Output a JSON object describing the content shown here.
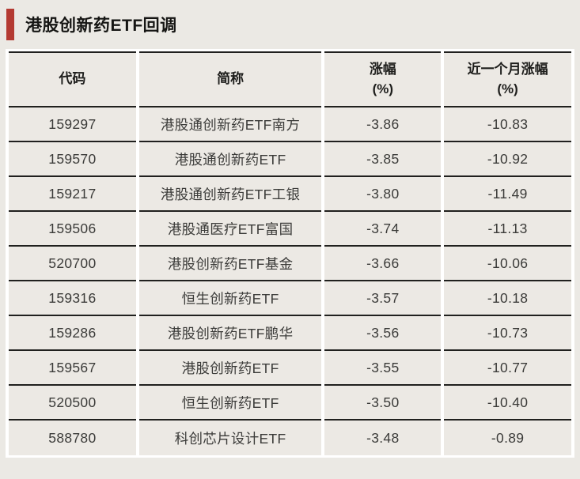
{
  "title": "港股创新药ETF回调",
  "colors": {
    "accent_bar": "#b43a32",
    "page_bg": "#ebe9e4",
    "cell_bg": "#ece9e4",
    "grid_gap": "#ffffff",
    "rule_line": "#20201e",
    "body_text": "#3b3b39",
    "header_text": "#1e1e1c"
  },
  "table": {
    "headers": [
      {
        "label": "代码",
        "unit": ""
      },
      {
        "label": "简称",
        "unit": ""
      },
      {
        "label": "涨幅",
        "unit": "(%)"
      },
      {
        "label": "近一个月涨幅",
        "unit": "(%)"
      }
    ],
    "rows": [
      {
        "code": "159297",
        "name": "港股通创新药ETF南方",
        "change_pct": "-3.86",
        "month_change_pct": "-10.83"
      },
      {
        "code": "159570",
        "name": "港股通创新药ETF",
        "change_pct": "-3.85",
        "month_change_pct": "-10.92"
      },
      {
        "code": "159217",
        "name": "港股通创新药ETF工银",
        "change_pct": "-3.80",
        "month_change_pct": "-11.49"
      },
      {
        "code": "159506",
        "name": "港股通医疗ETF富国",
        "change_pct": "-3.74",
        "month_change_pct": "-11.13"
      },
      {
        "code": "520700",
        "name": "港股创新药ETF基金",
        "change_pct": "-3.66",
        "month_change_pct": "-10.06"
      },
      {
        "code": "159316",
        "name": "恒生创新药ETF",
        "change_pct": "-3.57",
        "month_change_pct": "-10.18"
      },
      {
        "code": "159286",
        "name": "港股创新药ETF鹏华",
        "change_pct": "-3.56",
        "month_change_pct": "-10.73"
      },
      {
        "code": "159567",
        "name": "港股创新药ETF",
        "change_pct": "-3.55",
        "month_change_pct": "-10.77"
      },
      {
        "code": "520500",
        "name": "恒生创新药ETF",
        "change_pct": "-3.50",
        "month_change_pct": "-10.40"
      },
      {
        "code": "588780",
        "name": "科创芯片设计ETF",
        "change_pct": "-3.48",
        "month_change_pct": "-0.89"
      }
    ]
  },
  "chart_data": {
    "type": "table",
    "title": "港股创新药ETF回调",
    "columns": [
      "代码",
      "简称",
      "涨幅(%)",
      "近一个月涨幅(%)"
    ],
    "rows": [
      [
        "159297",
        "港股通创新药ETF南方",
        -3.86,
        -10.83
      ],
      [
        "159570",
        "港股通创新药ETF",
        -3.85,
        -10.92
      ],
      [
        "159217",
        "港股通创新药ETF工银",
        -3.8,
        -11.49
      ],
      [
        "159506",
        "港股通医疗ETF富国",
        -3.74,
        -11.13
      ],
      [
        "520700",
        "港股创新药ETF基金",
        -3.66,
        -10.06
      ],
      [
        "159316",
        "恒生创新药ETF",
        -3.57,
        -10.18
      ],
      [
        "159286",
        "港股创新药ETF鹏华",
        -3.56,
        -10.73
      ],
      [
        "159567",
        "港股创新药ETF",
        -3.55,
        -10.77
      ],
      [
        "520500",
        "恒生创新药ETF",
        -3.5,
        -10.4
      ],
      [
        "588780",
        "科创芯片设计ETF",
        -3.48,
        -0.89
      ]
    ]
  }
}
